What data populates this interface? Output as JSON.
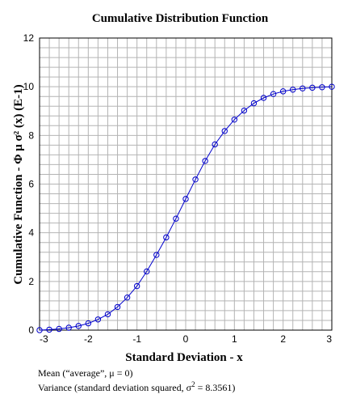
{
  "chart_data": {
    "type": "line",
    "title": "Cumulative Distribution Function",
    "xlabel": "Standard Deviation - x",
    "ylabel": "Cumulative Function - Φ μ σ² (x) (E-1)",
    "xlim": [
      -3,
      3
    ],
    "ylim": [
      0,
      12
    ],
    "grid": true,
    "x_ticks": [
      "-3",
      "-2",
      "-1",
      "0",
      "1",
      "2",
      "3"
    ],
    "y_ticks": [
      "0",
      "2",
      "4",
      "6",
      "8",
      "10",
      "12"
    ],
    "series": [
      {
        "marker": "circle",
        "color": "#0000cc",
        "x": [
          -3.0,
          -2.8,
          -2.6,
          -2.4,
          -2.2,
          -2.0,
          -1.8,
          -1.6,
          -1.4,
          -1.2,
          -1.0,
          -0.8,
          -0.6,
          -0.4,
          -0.2,
          0.0,
          0.2,
          0.4,
          0.6,
          0.8,
          1.0,
          1.2,
          1.4,
          1.6,
          1.8,
          2.0,
          2.2,
          2.4,
          2.6,
          2.8,
          3.0
        ],
        "y": [
          0.0,
          0.02,
          0.05,
          0.1,
          0.17,
          0.28,
          0.44,
          0.65,
          0.95,
          1.34,
          1.81,
          2.41,
          3.09,
          3.81,
          4.58,
          5.39,
          6.19,
          6.95,
          7.63,
          8.18,
          8.65,
          9.02,
          9.32,
          9.54,
          9.7,
          9.81,
          9.88,
          9.93,
          9.96,
          9.98,
          10.0
        ]
      }
    ]
  },
  "notes": {
    "mean": "Mean (“average”,  μ = 0)",
    "variance_prefix": "Variance (standard deviation squared, σ",
    "variance_sup": "2",
    "variance_suffix": " = 8.3561)"
  }
}
